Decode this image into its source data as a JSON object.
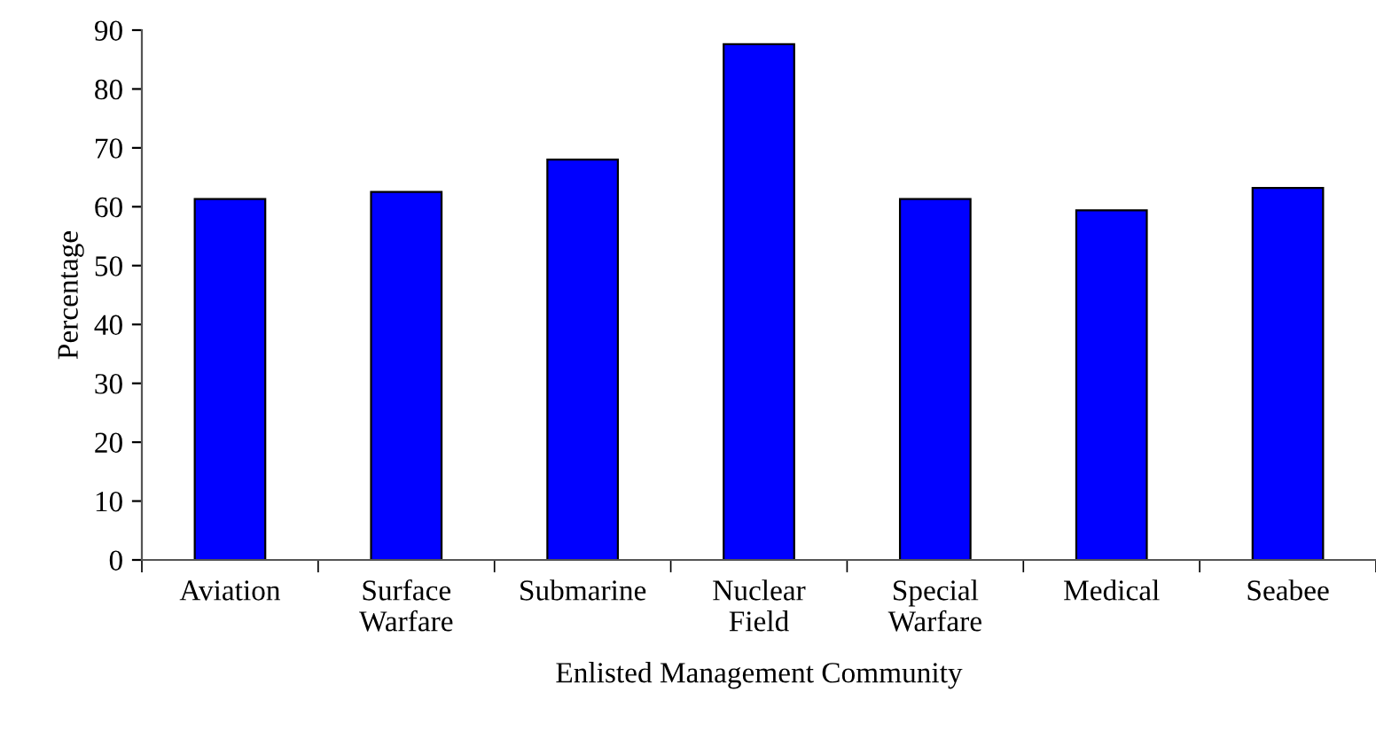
{
  "chart_data": {
    "type": "bar",
    "xlabel": "Enlisted Management Community",
    "ylabel": "Percentage",
    "categories": [
      "Aviation",
      "Surface\nWarfare",
      "Submarine",
      "Nuclear\nField",
      "Special\nWarfare",
      "Medical",
      "Seabee"
    ],
    "values": [
      61.3,
      62.5,
      68.0,
      87.6,
      61.3,
      59.4,
      63.2
    ],
    "color": "#0000ff",
    "ylim": [
      0,
      90
    ],
    "yticks": [
      0,
      10,
      20,
      30,
      40,
      50,
      60,
      70,
      80,
      90
    ],
    "grid": false,
    "legend": false
  }
}
